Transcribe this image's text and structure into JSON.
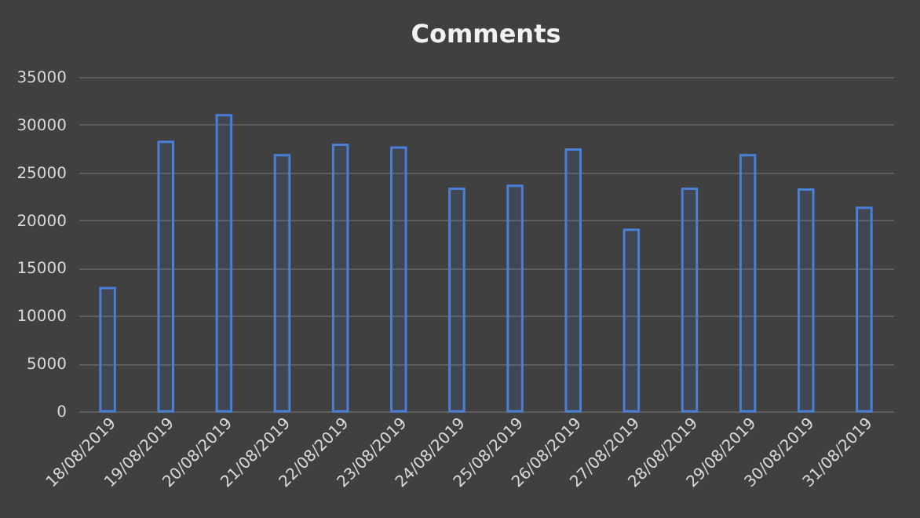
{
  "chart_data": {
    "type": "bar",
    "title": "Comments",
    "categories": [
      "18/08/2019",
      "19/08/2019",
      "20/08/2019",
      "21/08/2019",
      "22/08/2019",
      "23/08/2019",
      "24/08/2019",
      "25/08/2019",
      "26/08/2019",
      "27/08/2019",
      "28/08/2019",
      "29/08/2019",
      "30/08/2019",
      "31/08/2019"
    ],
    "values": [
      12900,
      28200,
      31000,
      26800,
      27900,
      27600,
      23300,
      23600,
      27400,
      19000,
      23300,
      26800,
      23200,
      21300
    ],
    "color": "#4a7fd6",
    "ylim": [
      0,
      35000
    ],
    "yticks": [
      0,
      5000,
      10000,
      15000,
      20000,
      25000,
      30000,
      35000
    ],
    "grid": "y"
  }
}
